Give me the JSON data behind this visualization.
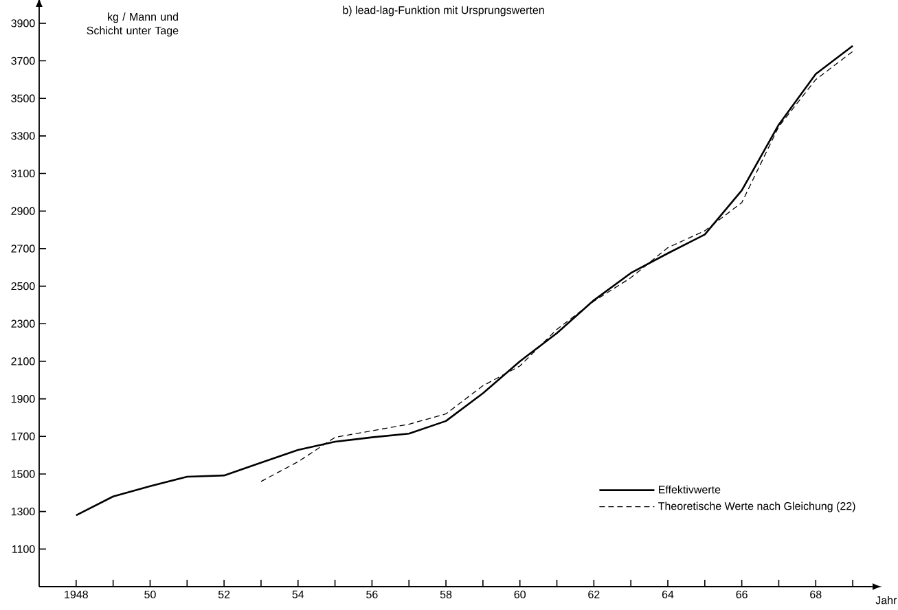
{
  "chart_data": {
    "type": "line",
    "title": "b)  lead-lag-Funktion mit Ursprungswerten",
    "ylabel": "kg / Mann und Schicht unter Tage",
    "xlabel": "Jahr",
    "x": [
      1948,
      1949,
      1950,
      1951,
      1952,
      1953,
      1954,
      1955,
      1956,
      1957,
      1958,
      1959,
      1960,
      1961,
      1962,
      1963,
      1964,
      1965,
      1966,
      1967,
      1968,
      1969
    ],
    "series": [
      {
        "name": "Effektivwerte",
        "color": "#000000",
        "line_style": "solid",
        "values": [
          1280,
          1380,
          1435,
          1485,
          1492,
          1560,
          1628,
          1672,
          1695,
          1715,
          1782,
          1930,
          2100,
          2250,
          2425,
          2570,
          2675,
          2775,
          3010,
          3360,
          3630,
          3780
        ]
      },
      {
        "name": "Theoretische Werte nach Gleichung (22)",
        "color": "#000000",
        "line_style": "dashed",
        "values": [
          null,
          null,
          null,
          null,
          null,
          1460,
          1565,
          1695,
          1730,
          1765,
          1820,
          1970,
          2075,
          2270,
          2420,
          2545,
          2705,
          2795,
          2945,
          3350,
          3600,
          3750
        ]
      }
    ],
    "xlim": [
      1947,
      1969.5
    ],
    "ylim": [
      900,
      3980
    ],
    "xticks": [
      1948,
      {
        "value": 1949,
        "label": null
      },
      {
        "value": 1950,
        "label": "50"
      },
      {
        "value": 1951,
        "label": null
      },
      {
        "value": 1952,
        "label": "52"
      },
      {
        "value": 1953,
        "label": null
      },
      {
        "value": 1954,
        "label": "54"
      },
      {
        "value": 1955,
        "label": null
      },
      {
        "value": 1956,
        "label": "56"
      },
      {
        "value": 1957,
        "label": null
      },
      {
        "value": 1958,
        "label": "58"
      },
      {
        "value": 1959,
        "label": null
      },
      {
        "value": 1960,
        "label": "60"
      },
      {
        "value": 1961,
        "label": null
      },
      {
        "value": 1962,
        "label": "62"
      },
      {
        "value": 1963,
        "label": null
      },
      {
        "value": 1964,
        "label": "64"
      },
      {
        "value": 1965,
        "label": null
      },
      {
        "value": 1966,
        "label": "66"
      },
      {
        "value": 1967,
        "label": null
      },
      {
        "value": 1968,
        "label": "68"
      },
      {
        "value": 1969,
        "label": null
      }
    ],
    "yticks": [
      1100,
      1300,
      1500,
      1700,
      1900,
      2100,
      2300,
      2500,
      2700,
      2900,
      3100,
      3300,
      3500,
      3700,
      3900
    ],
    "legend": "bottom right"
  }
}
